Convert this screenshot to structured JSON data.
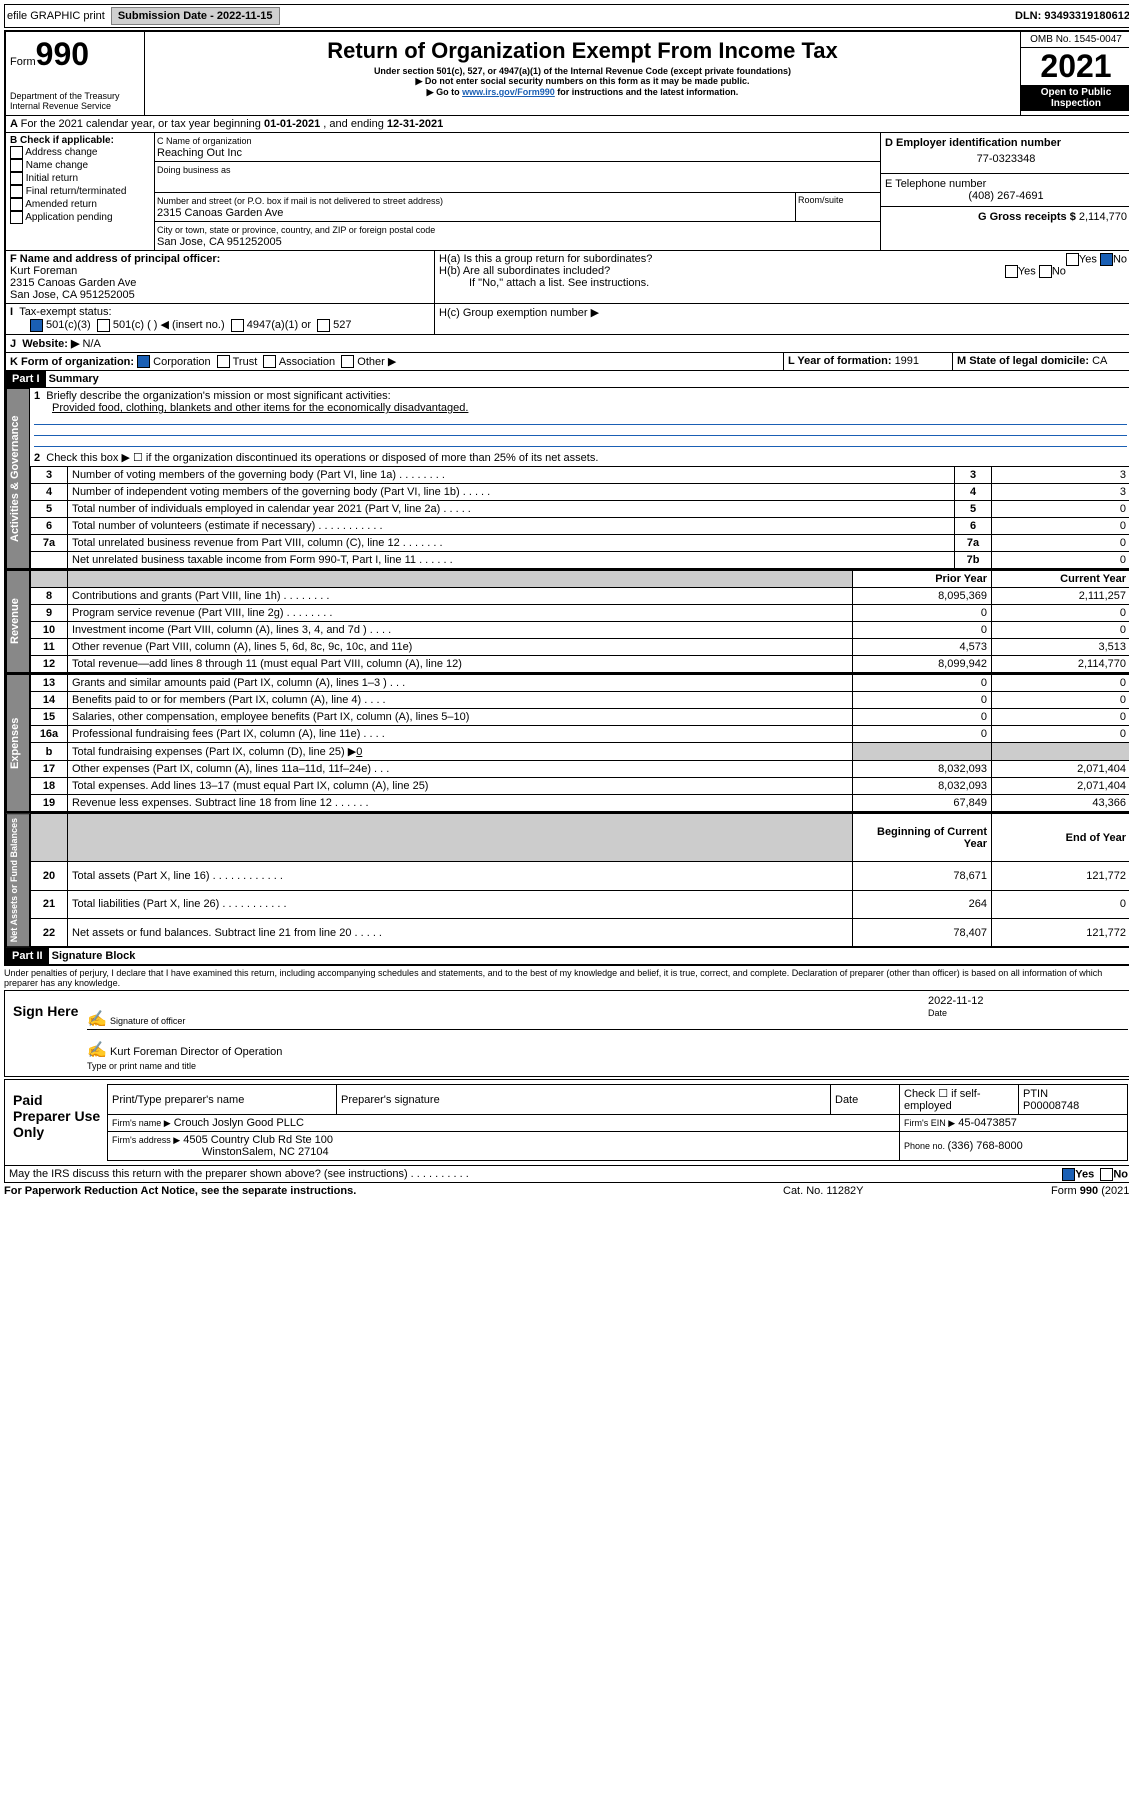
{
  "topbar": {
    "efile": "efile GRAPHIC print",
    "subdate_lbl": "Submission Date - ",
    "subdate": "2022-11-15",
    "dln_lbl": "DLN: ",
    "dln": "93493319180612"
  },
  "header": {
    "form": "990",
    "form_word": "Form",
    "title": "Return of Organization Exempt From Income Tax",
    "sub1": "Under section 501(c), 527, or 4947(a)(1) of the Internal Revenue Code (except private foundations)",
    "sub2": "▶ Do not enter social security numbers on this form as it may be made public.",
    "sub3": "▶ Go to ",
    "sub3link": "www.irs.gov/Form990",
    "sub3b": " for instructions and the latest information.",
    "dept": "Department of the Treasury",
    "irs": "Internal Revenue Service",
    "omb": "OMB No. 1545-0047",
    "year": "2021",
    "open": "Open to Public Inspection"
  },
  "A": {
    "text": "For the 2021 calendar year, or tax year beginning ",
    "d1": "01-01-2021",
    "mid": " , and ending ",
    "d2": "12-31-2021"
  },
  "B": {
    "hdr": "B Check if applicable:",
    "items": [
      "Address change",
      "Name change",
      "Initial return",
      "Final return/terminated",
      "Amended return",
      "Application pending"
    ]
  },
  "C": {
    "namelbl": "C Name of organization",
    "name": "Reaching Out Inc",
    "dba_lbl": "Doing business as",
    "dba": "",
    "addr_lbl": "Number and street (or P.O. box if mail is not delivered to street address)",
    "room_lbl": "Room/suite",
    "addr": "2315 Canoas Garden Ave",
    "city_lbl": "City or town, state or province, country, and ZIP or foreign postal code",
    "city": "San Jose, CA  951252005"
  },
  "D": {
    "lbl": "D Employer identification number",
    "val": "77-0323348"
  },
  "E": {
    "lbl": "E Telephone number",
    "val": "(408) 267-4691"
  },
  "G": {
    "lbl": "G Gross receipts $ ",
    "val": "2,114,770"
  },
  "F": {
    "lbl": "F  Name and address of principal officer:",
    "name": "Kurt Foreman",
    "addr1": "2315 Canoas Garden Ave",
    "addr2": "San Jose, CA  951252005"
  },
  "H": {
    "a": "H(a)  Is this a group return for subordinates?",
    "b": "H(b)  Are all subordinates included?",
    "ifno": "If \"No,\" attach a list. See instructions.",
    "c": "H(c)  Group exemption number ▶",
    "yes": "Yes",
    "no": "No"
  },
  "I": {
    "lbl": "Tax-exempt status:",
    "opts": [
      "501(c)(3)",
      "501(c) (  ) ◀ (insert no.)",
      "4947(a)(1) or",
      "527"
    ]
  },
  "J": {
    "lbl": "Website: ▶",
    "val": "N/A"
  },
  "K": {
    "lbl": "K Form of organization:",
    "opts": [
      "Corporation",
      "Trust",
      "Association",
      "Other ▶"
    ]
  },
  "L": {
    "lbl": "L Year of formation: ",
    "val": "1991"
  },
  "M": {
    "lbl": "M State of legal domicile: ",
    "val": "CA"
  },
  "partI": {
    "hdr": "Part I",
    "title": "Summary"
  },
  "l1": {
    "lbl": "Briefly describe the organization's mission or most significant activities:",
    "val": "Provided food, clothing, blankets and other items for the economically disadvantaged."
  },
  "l2": "Check this box ▶ ☐  if the organization discontinued its operations or disposed of more than 25% of its net assets.",
  "gov": "Activities & Governance",
  "rev": "Revenue",
  "exp": "Expenses",
  "net": "Net Assets or Fund Balances",
  "lines_gov": [
    {
      "n": "3",
      "t": "Number of voting members of the governing body (Part VI, line 1a)  .  .  .  .  .  .  .  .",
      "b": "3",
      "v": "3"
    },
    {
      "n": "4",
      "t": "Number of independent voting members of the governing body (Part VI, line 1b)  .  .  .  .  .",
      "b": "4",
      "v": "3"
    },
    {
      "n": "5",
      "t": "Total number of individuals employed in calendar year 2021 (Part V, line 2a)  .  .  .  .  .",
      "b": "5",
      "v": "0"
    },
    {
      "n": "6",
      "t": "Total number of volunteers (estimate if necessary)  .  .  .  .  .  .  .  .  .  .  .",
      "b": "6",
      "v": "0"
    },
    {
      "n": "7a",
      "t": "Total unrelated business revenue from Part VIII, column (C), line 12  .  .  .  .  .  .  .",
      "b": "7a",
      "v": "0"
    },
    {
      "n": "",
      "t": "Net unrelated business taxable income from Form 990-T, Part I, line 11  .  .  .  .  .  .",
      "b": "7b",
      "v": "0"
    }
  ],
  "colhdr": {
    "prior": "Prior Year",
    "curr": "Current Year",
    "begin": "Beginning of Current Year",
    "end": "End of Year"
  },
  "lines_rev": [
    {
      "n": "8",
      "t": "Contributions and grants (Part VIII, line 1h)  .  .  .  .  .  .  .  .",
      "p": "8,095,369",
      "c": "2,111,257"
    },
    {
      "n": "9",
      "t": "Program service revenue (Part VIII, line 2g)  .  .  .  .  .  .  .  .",
      "p": "0",
      "c": "0"
    },
    {
      "n": "10",
      "t": "Investment income (Part VIII, column (A), lines 3, 4, and 7d )  .  .  .  .",
      "p": "0",
      "c": "0"
    },
    {
      "n": "11",
      "t": "Other revenue (Part VIII, column (A), lines 5, 6d, 8c, 9c, 10c, and 11e)",
      "p": "4,573",
      "c": "3,513"
    },
    {
      "n": "12",
      "t": "Total revenue—add lines 8 through 11 (must equal Part VIII, column (A), line 12)",
      "p": "8,099,942",
      "c": "2,114,770"
    }
  ],
  "lines_exp": [
    {
      "n": "13",
      "t": "Grants and similar amounts paid (Part IX, column (A), lines 1–3 )  .  .  .",
      "p": "0",
      "c": "0"
    },
    {
      "n": "14",
      "t": "Benefits paid to or for members (Part IX, column (A), line 4)  .  .  .  .",
      "p": "0",
      "c": "0"
    },
    {
      "n": "15",
      "t": "Salaries, other compensation, employee benefits (Part IX, column (A), lines 5–10)",
      "p": "0",
      "c": "0"
    },
    {
      "n": "16a",
      "t": "Professional fundraising fees (Part IX, column (A), line 11e)  .  .  .  .",
      "p": "0",
      "c": "0"
    },
    {
      "n": "b",
      "t": "Total fundraising expenses (Part IX, column (D), line 25) ▶",
      "p": "",
      "c": "",
      "shade": true,
      "inline": "0"
    },
    {
      "n": "17",
      "t": "Other expenses (Part IX, column (A), lines 11a–11d, 11f–24e)  .  .  .",
      "p": "8,032,093",
      "c": "2,071,404"
    },
    {
      "n": "18",
      "t": "Total expenses. Add lines 13–17 (must equal Part IX, column (A), line 25)",
      "p": "8,032,093",
      "c": "2,071,404"
    },
    {
      "n": "19",
      "t": "Revenue less expenses. Subtract line 18 from line 12  .  .  .  .  .  .",
      "p": "67,849",
      "c": "43,366"
    }
  ],
  "lines_net": [
    {
      "n": "20",
      "t": "Total assets (Part X, line 16)  .  .  .  .  .  .  .  .  .  .  .  .",
      "p": "78,671",
      "c": "121,772"
    },
    {
      "n": "21",
      "t": "Total liabilities (Part X, line 26)  .  .  .  .  .  .  .  .  .  .  .",
      "p": "264",
      "c": "0"
    },
    {
      "n": "22",
      "t": "Net assets or fund balances. Subtract line 21 from line 20  .  .  .  .  .",
      "p": "78,407",
      "c": "121,772"
    }
  ],
  "partII": {
    "hdr": "Part II",
    "title": "Signature Block"
  },
  "penalty": "Under penalties of perjury, I declare that I have examined this return, including accompanying schedules and statements, and to the best of my knowledge and belief, it is true, correct, and complete. Declaration of preparer (other than officer) is based on all information of which preparer has any knowledge.",
  "sign": {
    "here": "Sign Here",
    "sigoff": "Signature of officer",
    "date_lbl": "Date",
    "date": "2022-11-12",
    "name": "Kurt Foreman  Director of Operation",
    "typelbl": "Type or print name and title"
  },
  "paid": {
    "hdr": "Paid Preparer Use Only",
    "prep_lbl": "Print/Type preparer's name",
    "sig_lbl": "Preparer's signature",
    "date_lbl": "Date",
    "check_lbl": "Check ☐ if self-employed",
    "ptin_lbl": "PTIN",
    "ptin": "P00008748",
    "firm_lbl": "Firm's name   ▶",
    "firm": "Crouch Joslyn Good PLLC",
    "ein_lbl": "Firm's EIN ▶",
    "ein": "45-0473857",
    "addr_lbl": "Firm's address ▶",
    "addr": "4505 Country Club Rd Ste 100",
    "addr2": "WinstonSalem, NC  27104",
    "phone_lbl": "Phone no. ",
    "phone": "(336) 768-8000"
  },
  "footer": {
    "discuss": "May the IRS discuss this return with the preparer shown above? (see instructions)  .  .  .  .  .  .  .  .  .  .",
    "yes": "Yes",
    "no": "No",
    "pra": "For Paperwork Reduction Act Notice, see the separate instructions.",
    "cat": "Cat. No. 11282Y",
    "form": "Form 990 (2021)"
  }
}
